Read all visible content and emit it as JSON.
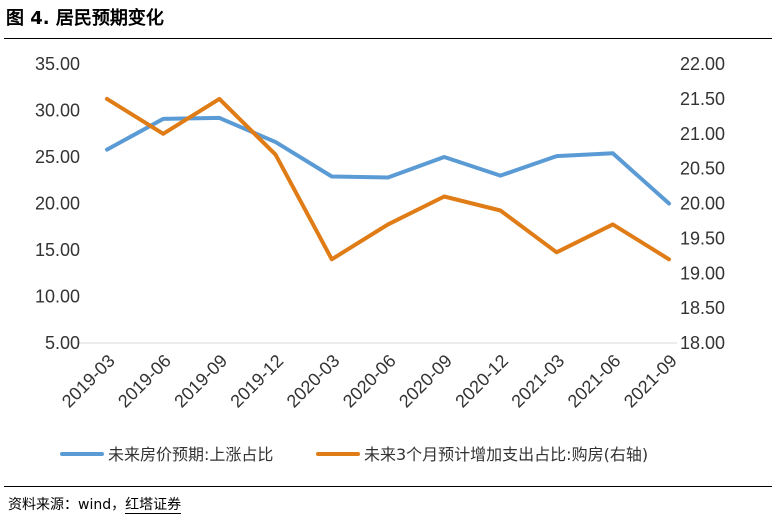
{
  "figure": {
    "title": "图 4. 居民预期变化",
    "source_label": "资料来源：wind，",
    "source_brand": "红塔证券"
  },
  "chart_data": {
    "type": "line",
    "title": "居民预期变化",
    "categories": [
      "2019-03",
      "2019-06",
      "2019-09",
      "2019-12",
      "2020-03",
      "2020-06",
      "2020-09",
      "2020-12",
      "2021-03",
      "2021-06",
      "2021-09"
    ],
    "series": [
      {
        "name": "未来房价预期:上涨占比",
        "axis": "left",
        "color": "#5B9BD5",
        "values": [
          25.8,
          29.1,
          29.2,
          26.6,
          22.9,
          22.8,
          25.0,
          23.0,
          25.1,
          25.4,
          20.0
        ]
      },
      {
        "name": "未来3个月预计增加支出占比:购房(右轴)",
        "axis": "right",
        "color": "#E07C16",
        "values": [
          21.5,
          21.0,
          21.5,
          20.7,
          19.2,
          19.7,
          20.1,
          19.9,
          19.3,
          19.7,
          19.2
        ]
      }
    ],
    "left_axis": {
      "ylim": [
        5,
        35
      ],
      "ticks": [
        5,
        10,
        15,
        20,
        25,
        30,
        35
      ],
      "tick_labels": [
        "5.00",
        "10.00",
        "15.00",
        "20.00",
        "25.00",
        "30.00",
        "35.00"
      ]
    },
    "right_axis": {
      "ylim": [
        18,
        22
      ],
      "ticks": [
        18,
        18.5,
        19,
        19.5,
        20,
        20.5,
        21,
        21.5,
        22
      ],
      "tick_labels": [
        "18.00",
        "18.50",
        "19.00",
        "19.50",
        "20.00",
        "20.50",
        "21.00",
        "21.50",
        "22.00"
      ]
    },
    "grid": false,
    "legend_position": "bottom"
  }
}
